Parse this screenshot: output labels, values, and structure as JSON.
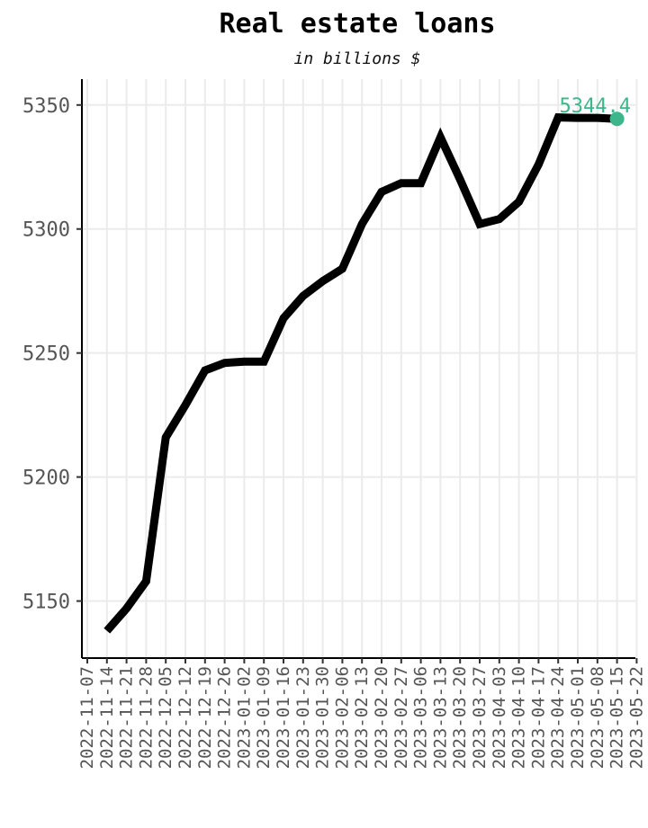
{
  "chart_data": {
    "type": "line",
    "title": "Real estate loans",
    "subtitle": "in billions $",
    "xlabel": "",
    "ylabel": "",
    "x": [
      "2022-11-14",
      "2022-11-21",
      "2022-11-28",
      "2022-12-05",
      "2022-12-12",
      "2022-12-19",
      "2022-12-26",
      "2023-01-02",
      "2023-01-09",
      "2023-01-16",
      "2023-01-23",
      "2023-01-30",
      "2023-02-06",
      "2023-02-13",
      "2023-02-20",
      "2023-02-27",
      "2023-03-06",
      "2023-03-13",
      "2023-03-20",
      "2023-03-27",
      "2023-04-03",
      "2023-04-10",
      "2023-04-17",
      "2023-04-24",
      "2023-05-01",
      "2023-05-08",
      "2023-05-15"
    ],
    "values": [
      5138,
      5147,
      5158,
      5216,
      5229,
      5243,
      5246,
      5246.5,
      5246.5,
      5264,
      5273,
      5279,
      5284,
      5302,
      5315,
      5318.5,
      5318.5,
      5337,
      5320,
      5302,
      5304,
      5311,
      5326,
      5345,
      5344.8,
      5344.8,
      5344.4
    ],
    "x_tick_labels": [
      "2022-11-07",
      "2022-11-14",
      "2022-11-21",
      "2022-11-28",
      "2022-12-05",
      "2022-12-12",
      "2022-12-19",
      "2022-12-26",
      "2023-01-02",
      "2023-01-09",
      "2023-01-16",
      "2023-01-23",
      "2023-01-30",
      "2023-02-06",
      "2023-02-13",
      "2023-02-20",
      "2023-02-27",
      "2023-03-06",
      "2023-03-13",
      "2023-03-20",
      "2023-03-27",
      "2023-04-03",
      "2023-04-10",
      "2023-04-17",
      "2023-04-24",
      "2023-05-01",
      "2023-05-08",
      "2023-05-15",
      "2023-05-22"
    ],
    "y_ticks": [
      5150,
      5200,
      5250,
      5300,
      5350
    ],
    "ylim": [
      5127,
      5355
    ],
    "xlim": [
      "2022-11-07",
      "2022-05-22"
    ],
    "grid": true,
    "last_point_label": "5344.4",
    "colors": {
      "line": "#000000",
      "highlight": "#3cb68a",
      "grid": "#ebebeb",
      "axis": "#000000"
    }
  }
}
